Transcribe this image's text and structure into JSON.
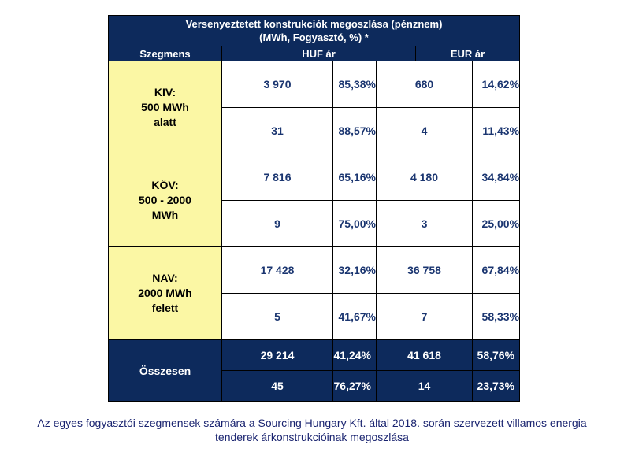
{
  "table": {
    "title_line1": "Versenyeztetett konstrukciók megoszlása (pénznem)",
    "title_line2": "(MWh, Fogyasztó, %) *",
    "col_segment": "Szegmens",
    "col_huf": "HUF ár",
    "col_eur": "EUR ár",
    "segments": [
      {
        "label_lines": [
          "KIV:",
          "500 MWh",
          "alatt"
        ],
        "rows": [
          {
            "huf": "3 970",
            "huf_pct": "85,38%",
            "eur": "680",
            "eur_pct": "14,62%"
          },
          {
            "huf": "31",
            "huf_pct": "88,57%",
            "eur": "4",
            "eur_pct": "11,43%"
          }
        ]
      },
      {
        "label_lines": [
          "KÖV:",
          "500 - 2000",
          "MWh"
        ],
        "rows": [
          {
            "huf": "7 816",
            "huf_pct": "65,16%",
            "eur": "4 180",
            "eur_pct": "34,84%"
          },
          {
            "huf": "9",
            "huf_pct": "75,00%",
            "eur": "3",
            "eur_pct": "25,00%"
          }
        ]
      },
      {
        "label_lines": [
          "NAV:",
          "2000 MWh",
          "felett"
        ],
        "rows": [
          {
            "huf": "17 428",
            "huf_pct": "32,16%",
            "eur": "36 758",
            "eur_pct": "67,84%"
          },
          {
            "huf": "5",
            "huf_pct": "41,67%",
            "eur": "7",
            "eur_pct": "58,33%"
          }
        ]
      }
    ],
    "total": {
      "label": "Összesen",
      "rows": [
        {
          "huf": "29 214",
          "huf_pct": "41,24%",
          "eur": "41 618",
          "eur_pct": "58,76%"
        },
        {
          "huf": "45",
          "huf_pct": "76,27%",
          "eur": "14",
          "eur_pct": "23,73%"
        }
      ]
    }
  },
  "caption_line1": "Az egyes fogyasztói szegmensek számára a Sourcing Hungary Kft. által 2018. során szervezett villamos energia",
  "caption_line2": "tenderek árkonstrukcióinak megoszlása",
  "colors": {
    "header_bg": "#0d2a5c",
    "segment_bg": "#fbf7a4",
    "number_text": "#1a3570"
  }
}
